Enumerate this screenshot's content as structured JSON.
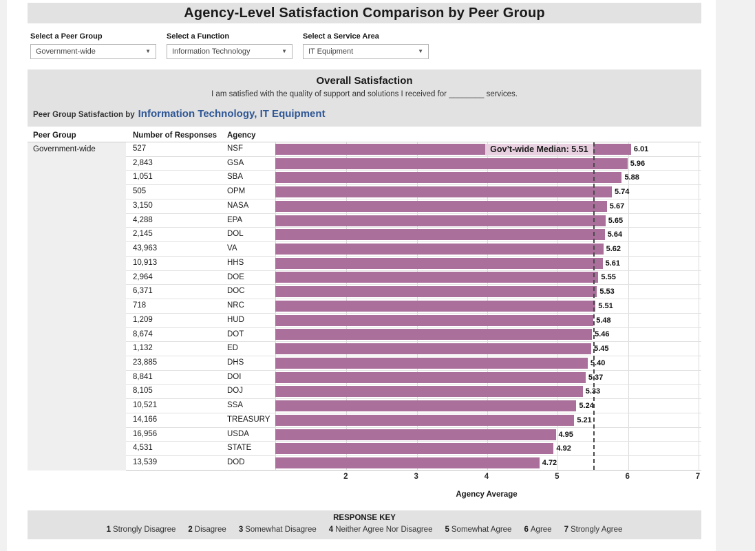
{
  "page_title": "Agency-Level Satisfaction Comparison by Peer Group",
  "filters": [
    {
      "label": "Select a Peer Group",
      "value": "Government-wide"
    },
    {
      "label": "Select a Function",
      "value": "Information Technology"
    },
    {
      "label": "Select a Service Area",
      "value": "IT Equipment"
    }
  ],
  "section": {
    "title": "Overall Satisfaction",
    "question": "I am satisfied with the quality of support and solutions I received for ________ services.",
    "subtitle_prefix": "Peer Group Satisfaction by",
    "subtitle_highlight": "Information Technology, IT Equipment"
  },
  "table": {
    "columns": {
      "peer_group": "Peer Group",
      "responses": "Number of Responses",
      "agency": "Agency"
    },
    "peer_group_value": "Government-wide"
  },
  "chart_data": {
    "type": "bar",
    "orientation": "horizontal",
    "xlabel": "Agency Average",
    "xlim": [
      1,
      7
    ],
    "ticks": [
      2,
      3,
      4,
      5,
      6,
      7
    ],
    "grid": true,
    "bar_color": "#aa6f9a",
    "median": {
      "label": "Gov’t-wide Median: 5.51",
      "value": 5.51
    },
    "rows": [
      {
        "responses": "527",
        "agency": "NSF",
        "value": 6.01,
        "value_label": "6.01"
      },
      {
        "responses": "2,843",
        "agency": "GSA",
        "value": 5.96,
        "value_label": "5.96"
      },
      {
        "responses": "1,051",
        "agency": "SBA",
        "value": 5.88,
        "value_label": "5.88"
      },
      {
        "responses": "505",
        "agency": "OPM",
        "value": 5.74,
        "value_label": "5.74"
      },
      {
        "responses": "3,150",
        "agency": "NASA",
        "value": 5.67,
        "value_label": "5.67"
      },
      {
        "responses": "4,288",
        "agency": "EPA",
        "value": 5.65,
        "value_label": "5.65"
      },
      {
        "responses": "2,145",
        "agency": "DOL",
        "value": 5.64,
        "value_label": "5.64"
      },
      {
        "responses": "43,963",
        "agency": "VA",
        "value": 5.62,
        "value_label": "5.62"
      },
      {
        "responses": "10,913",
        "agency": "HHS",
        "value": 5.61,
        "value_label": "5.61"
      },
      {
        "responses": "2,964",
        "agency": "DOE",
        "value": 5.55,
        "value_label": "5.55"
      },
      {
        "responses": "6,371",
        "agency": "DOC",
        "value": 5.53,
        "value_label": "5.53"
      },
      {
        "responses": "718",
        "agency": "NRC",
        "value": 5.51,
        "value_label": "5.51"
      },
      {
        "responses": "1,209",
        "agency": "HUD",
        "value": 5.48,
        "value_label": "5.48"
      },
      {
        "responses": "8,674",
        "agency": "DOT",
        "value": 5.46,
        "value_label": "5.46"
      },
      {
        "responses": "1,132",
        "agency": "ED",
        "value": 5.45,
        "value_label": "5.45"
      },
      {
        "responses": "23,885",
        "agency": "DHS",
        "value": 5.4,
        "value_label": "5.40"
      },
      {
        "responses": "8,841",
        "agency": "DOI",
        "value": 5.37,
        "value_label": "5.37"
      },
      {
        "responses": "8,105",
        "agency": "DOJ",
        "value": 5.33,
        "value_label": "5.33"
      },
      {
        "responses": "10,521",
        "agency": "SSA",
        "value": 5.24,
        "value_label": "5.24"
      },
      {
        "responses": "14,166",
        "agency": "TREASURY",
        "value": 5.21,
        "value_label": "5.21"
      },
      {
        "responses": "16,956",
        "agency": "USDA",
        "value": 4.95,
        "value_label": "4.95"
      },
      {
        "responses": "4,531",
        "agency": "STATE",
        "value": 4.92,
        "value_label": "4.92"
      },
      {
        "responses": "13,539",
        "agency": "DOD",
        "value": 4.72,
        "value_label": "4.72"
      }
    ]
  },
  "response_key": {
    "title": "RESPONSE KEY",
    "items": [
      {
        "num": "1",
        "label": "Strongly Disagree"
      },
      {
        "num": "2",
        "label": "Disagree"
      },
      {
        "num": "3",
        "label": "Somewhat Disagree"
      },
      {
        "num": "4",
        "label": "Neither Agree Nor Disagree"
      },
      {
        "num": "5",
        "label": "Somewhat Agree"
      },
      {
        "num": "6",
        "label": "Agree"
      },
      {
        "num": "7",
        "label": "Strongly Agree"
      }
    ]
  },
  "colors": {
    "bar": "#aa6f9a",
    "median_note_bg": "#e8d0e0",
    "band_bg": "#e2e2e2",
    "peer_cell_bg": "#efefef",
    "subtitle_highlight": "#2f5796",
    "page_bg": "#f1f1f1"
  }
}
